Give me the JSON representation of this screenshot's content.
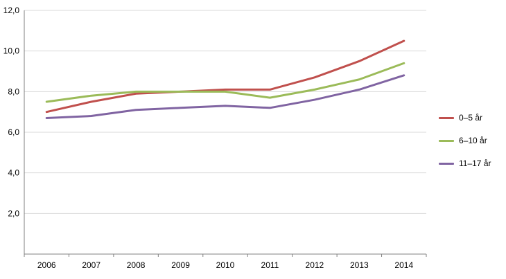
{
  "chart_data": {
    "type": "line",
    "title": "",
    "xlabel": "",
    "ylabel": "",
    "categories": [
      "2006",
      "2007",
      "2008",
      "2009",
      "2010",
      "2011",
      "2012",
      "2013",
      "2014"
    ],
    "series": [
      {
        "name": "0–5 år",
        "color": "#C0504D",
        "values": [
          7.0,
          7.5,
          7.9,
          8.0,
          8.1,
          8.1,
          8.7,
          9.5,
          10.5
        ]
      },
      {
        "name": "6–10 år",
        "color": "#9BBB59",
        "values": [
          7.5,
          7.8,
          8.0,
          8.0,
          8.0,
          7.7,
          8.1,
          8.6,
          9.4
        ]
      },
      {
        "name": "11–17 år",
        "color": "#8064A2",
        "values": [
          6.7,
          6.8,
          7.1,
          7.2,
          7.3,
          7.2,
          7.6,
          8.1,
          8.8
        ]
      }
    ],
    "ylim": [
      0,
      12
    ],
    "yticks": [
      {
        "value": 12,
        "label": "12,0"
      },
      {
        "value": 10,
        "label": "10,0"
      },
      {
        "value": 8,
        "label": "8,0"
      },
      {
        "value": 6,
        "label": "6,0"
      },
      {
        "value": 4,
        "label": "4,0"
      },
      {
        "value": 2,
        "label": "2,0"
      }
    ],
    "grid": true,
    "legend_position": "right",
    "colors": {
      "grid": "#D9D9D9",
      "axis": "#808080",
      "text": "#000000",
      "background": "#FFFFFF"
    }
  }
}
